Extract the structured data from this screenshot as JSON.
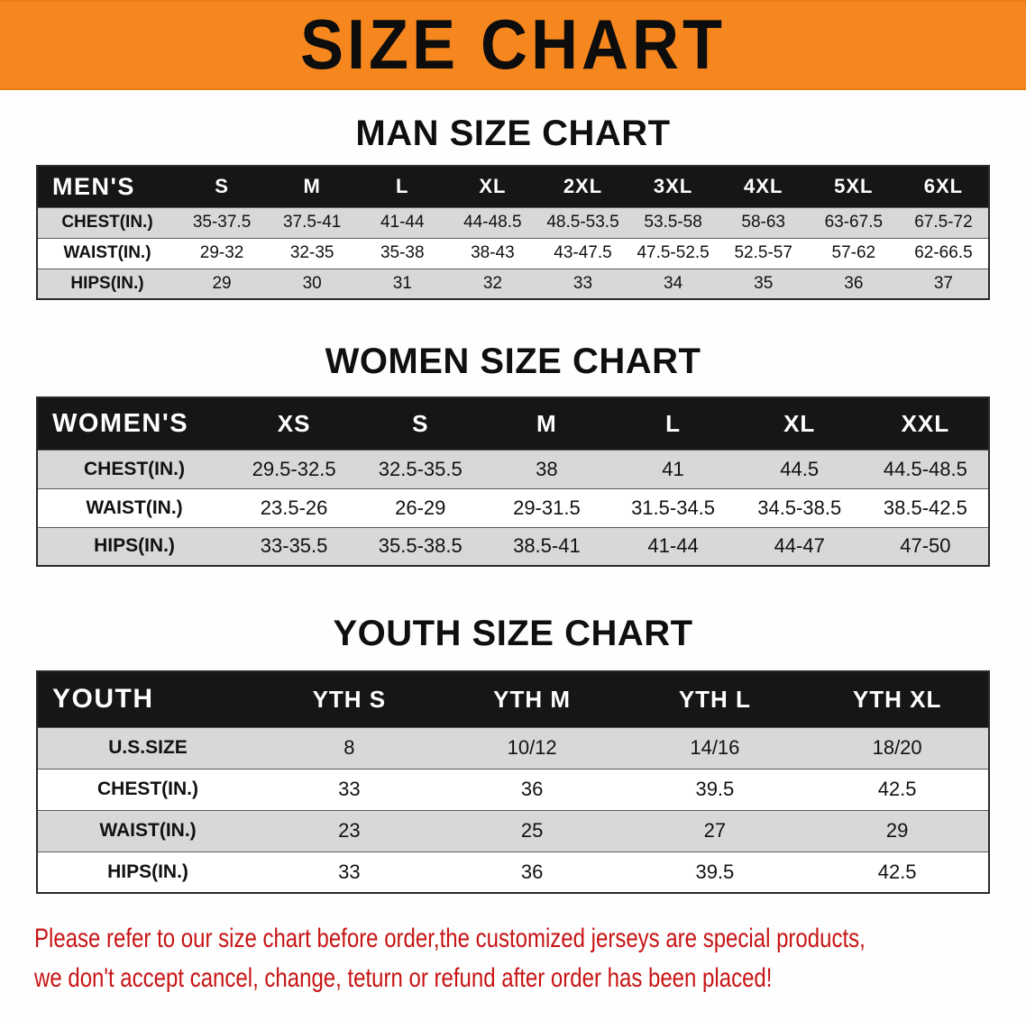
{
  "banner": {
    "title": "SIZE CHART",
    "bg_color": "#f6861e"
  },
  "sections": [
    {
      "heading": "MAN SIZE CHART",
      "table": {
        "header": [
          "MEN'S",
          "S",
          "M",
          "L",
          "XL",
          "2XL",
          "3XL",
          "4XL",
          "5XL",
          "6XL"
        ],
        "rows": [
          [
            "CHEST(IN.)",
            "35-37.5",
            "37.5-41",
            "41-44",
            "44-48.5",
            "48.5-53.5",
            "53.5-58",
            "58-63",
            "63-67.5",
            "67.5-72"
          ],
          [
            "WAIST(IN.)",
            "29-32",
            "32-35",
            "35-38",
            "38-43",
            "43-47.5",
            "47.5-52.5",
            "52.5-57",
            "57-62",
            "62-66.5"
          ],
          [
            "HIPS(IN.)",
            "29",
            "30",
            "31",
            "32",
            "33",
            "34",
            "35",
            "36",
            "37"
          ]
        ]
      }
    },
    {
      "heading": "WOMEN SIZE CHART",
      "table": {
        "header": [
          "WOMEN'S",
          "XS",
          "S",
          "M",
          "L",
          "XL",
          "XXL"
        ],
        "rows": [
          [
            "CHEST(IN.)",
            "29.5-32.5",
            "32.5-35.5",
            "38",
            "41",
            "44.5",
            "44.5-48.5"
          ],
          [
            "WAIST(IN.)",
            "23.5-26",
            "26-29",
            "29-31.5",
            "31.5-34.5",
            "34.5-38.5",
            "38.5-42.5"
          ],
          [
            "HIPS(IN.)",
            "33-35.5",
            "35.5-38.5",
            "38.5-41",
            "41-44",
            "44-47",
            "47-50"
          ]
        ]
      }
    },
    {
      "heading": "YOUTH SIZE CHART",
      "table": {
        "header": [
          "YOUTH",
          "YTH S",
          "YTH M",
          "YTH L",
          "YTH XL"
        ],
        "rows": [
          [
            "U.S.SIZE",
            "8",
            "10/12",
            "14/16",
            "18/20"
          ],
          [
            "CHEST(IN.)",
            "33",
            "36",
            "39.5",
            "42.5"
          ],
          [
            "WAIST(IN.)",
            "23",
            "25",
            "27",
            "29"
          ],
          [
            "HIPS(IN.)",
            "33",
            "36",
            "39.5",
            "42.5"
          ]
        ]
      }
    }
  ],
  "footer": {
    "line1": "Please refer to our size chart before order,the customized jerseys are special products,",
    "line2": "we don't accept cancel, change, teturn or refund after order has been placed!",
    "text_color": "#c81414"
  }
}
